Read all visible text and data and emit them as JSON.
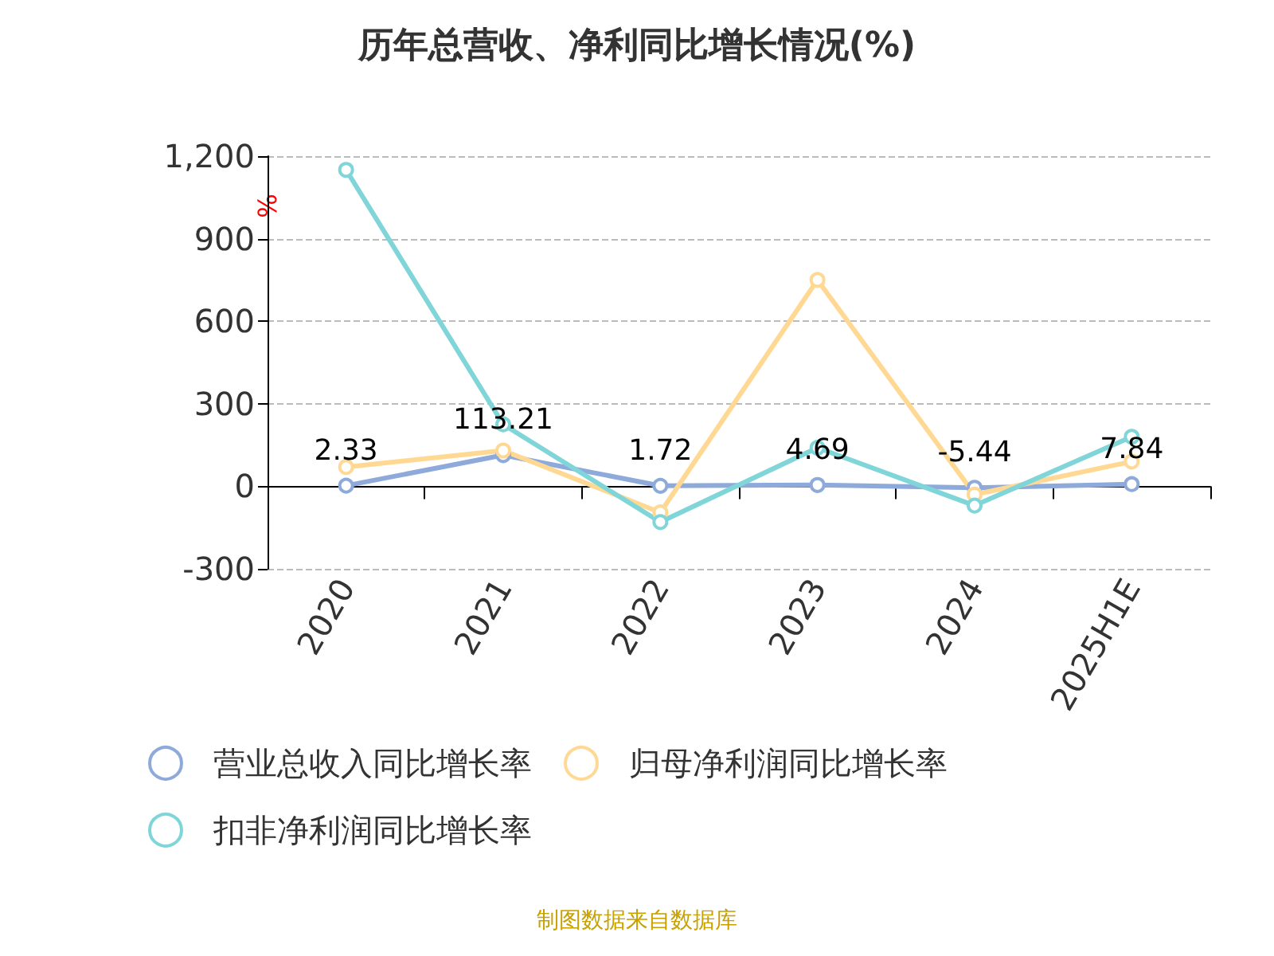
{
  "chart_data": {
    "type": "line",
    "title": "历年总营收、净利同比增长情况(%)",
    "ylabel": "%",
    "categories": [
      "2020",
      "2021",
      "2022",
      "2023",
      "2024",
      "2025H1E"
    ],
    "series": [
      {
        "name": "营业总收入同比增长率",
        "color": "#8eaadb",
        "values": [
          2.33,
          113.21,
          1.72,
          4.69,
          -5.44,
          7.84
        ],
        "value_labels": [
          "2.33",
          "113.21",
          "1.72",
          "4.69",
          "-5.44",
          "7.84"
        ]
      },
      {
        "name": "归母净利润同比增长率",
        "color": "#ffd993",
        "values": [
          70,
          130,
          -95,
          750,
          -30,
          90
        ]
      },
      {
        "name": "扣非净利润同比增长率",
        "color": "#80d5d8",
        "values": [
          1150,
          225,
          -130,
          140,
          -70,
          180
        ]
      }
    ],
    "ylim": [
      -300,
      1200
    ],
    "yticks": [
      -300,
      0,
      300,
      600,
      900,
      {
        "value": 1200,
        "label": "1,200"
      }
    ],
    "grid": "y",
    "legend": "bottom",
    "marker": "circle",
    "line_style": "solid",
    "annotations": [
      "制图数据来自数据库"
    ]
  }
}
